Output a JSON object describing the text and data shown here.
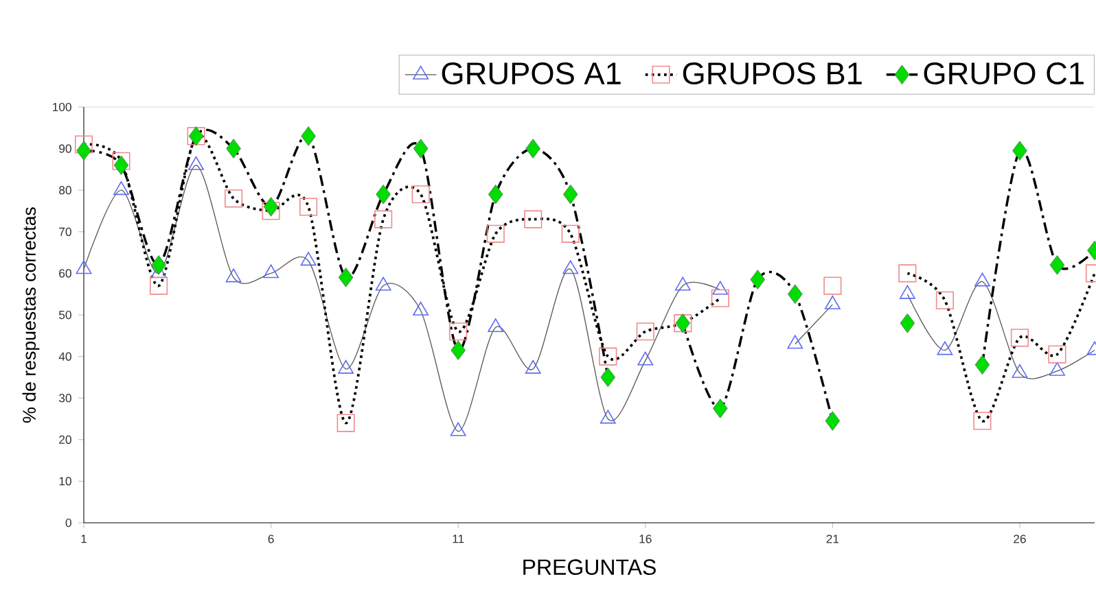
{
  "chart_data": {
    "type": "line",
    "xlabel": "PREGUNTAS",
    "ylabel": "% de respuestas correctas",
    "x": [
      1,
      2,
      3,
      4,
      5,
      6,
      7,
      8,
      9,
      10,
      11,
      12,
      13,
      14,
      15,
      16,
      17,
      18,
      19,
      20,
      21,
      22,
      23,
      24,
      25,
      26,
      27,
      28
    ],
    "xlim": [
      1,
      28
    ],
    "ylim": [
      0,
      100
    ],
    "xticks": [
      1,
      6,
      11,
      16,
      21,
      26
    ],
    "yticks": [
      0,
      10,
      20,
      30,
      40,
      50,
      60,
      70,
      80,
      90,
      100
    ],
    "legend": "top",
    "grid": false,
    "series": [
      {
        "name": "GRUPOS A1",
        "color": "#5b6cf5",
        "marker": "triangle",
        "line_style": "solid",
        "values": [
          61,
          80,
          60,
          86,
          59,
          60,
          63,
          37,
          57,
          51,
          22,
          47,
          37,
          61,
          25,
          39,
          57,
          56,
          null,
          43,
          52.5,
          null,
          55,
          41.5,
          58,
          36,
          36.5,
          41.5
        ]
      },
      {
        "name": "GRUPOS B1",
        "color": "#f08a8a",
        "marker": "square",
        "line_style": "dotted",
        "values": [
          91,
          87,
          57,
          93,
          78,
          75,
          76,
          24,
          73,
          79,
          46,
          69.5,
          73,
          69.5,
          40,
          46,
          48,
          54,
          null,
          null,
          57,
          null,
          60,
          53.5,
          24.5,
          44.5,
          40.5,
          60
        ]
      },
      {
        "name": "GRUPO C1",
        "color": "#00dd00",
        "marker": "diamond",
        "line_style": "dashdot",
        "values": [
          89.5,
          86,
          62,
          93,
          90,
          76,
          93,
          59,
          79,
          90,
          41.5,
          79,
          90,
          79,
          35,
          null,
          48,
          27.5,
          58.5,
          55,
          24.5,
          null,
          48,
          null,
          38,
          89.5,
          62,
          65.5
        ]
      }
    ]
  }
}
